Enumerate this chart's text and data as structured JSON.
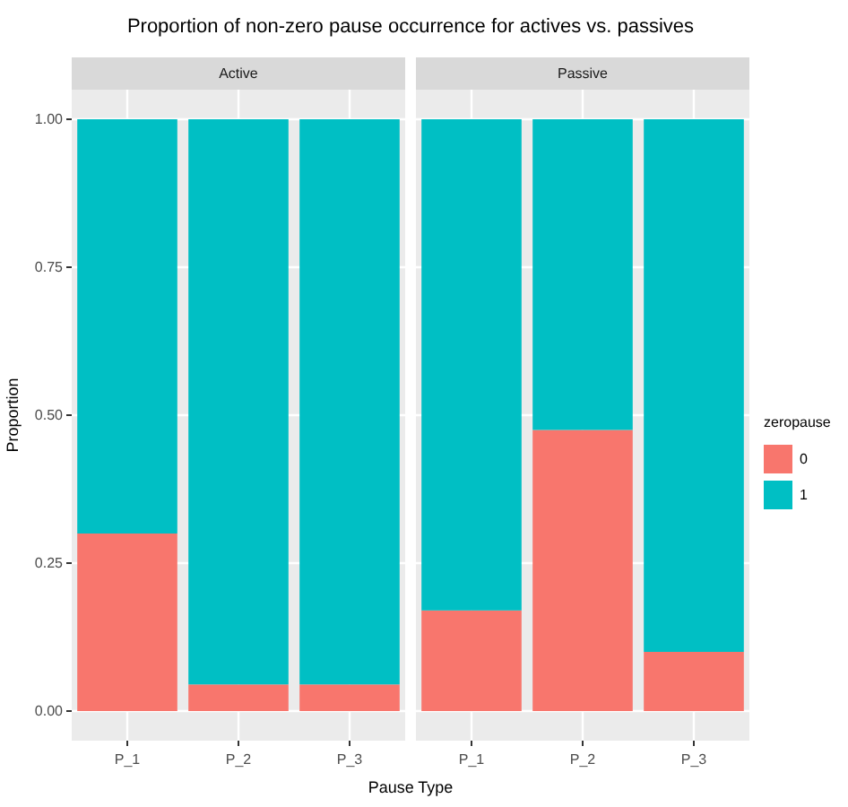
{
  "chart_data": [
    {
      "type": "bar",
      "title": "Proportion of non-zero pause occurrence for actives vs. passives",
      "subtitle": "Active",
      "xlabel": "Pause Type",
      "ylabel": "Proportion",
      "categories": [
        "P_1",
        "P_2",
        "P_3"
      ],
      "stacked": true,
      "series": [
        {
          "name": "0",
          "color": "#f8766d",
          "values": [
            0.3,
            0.045,
            0.045
          ]
        },
        {
          "name": "1",
          "color": "#00bfc4",
          "values": [
            0.7,
            0.955,
            0.955
          ]
        }
      ],
      "ylim": [
        -0.05,
        1.05
      ],
      "yticks": [
        {
          "value": 0,
          "label": "0.00"
        },
        {
          "value": 0.25,
          "label": "0.25"
        },
        {
          "value": 0.5,
          "label": "0.50"
        },
        {
          "value": 0.75,
          "label": "0.75"
        },
        {
          "value": 1,
          "label": "1.00"
        }
      ],
      "grid": true,
      "legend": "right",
      "legend_title": "zeropause"
    },
    {
      "type": "bar",
      "subtitle": "Passive",
      "categories": [
        "P_1",
        "P_2",
        "P_3"
      ],
      "stacked": true,
      "series": [
        {
          "name": "0",
          "color": "#f8766d",
          "values": [
            0.17,
            0.475,
            0.1
          ]
        },
        {
          "name": "1",
          "color": "#00bfc4",
          "values": [
            0.83,
            0.525,
            0.9
          ]
        }
      ],
      "ylim": [
        -0.05,
        1.05
      ],
      "yticks": [
        0,
        0.25,
        0.5,
        0.75,
        1
      ],
      "grid": true,
      "legend": "right",
      "tick_labels": "x"
    }
  ]
}
